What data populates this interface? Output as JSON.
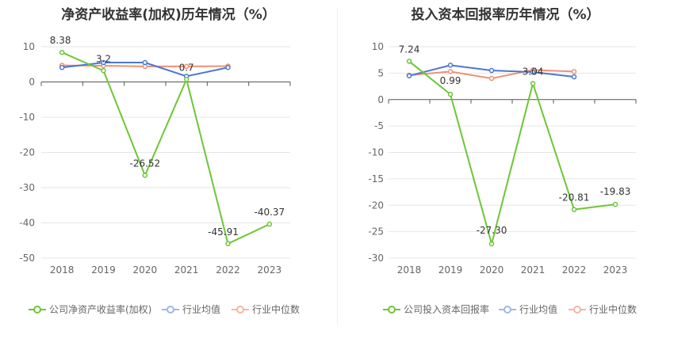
{
  "charts": [
    {
      "title": "净资产收益率(加权)历年情况（%）",
      "legend": [
        "公司净资产收益率(加权)",
        "行业均值",
        "行业中位数"
      ]
    },
    {
      "title": "投入资本回报率历年情况（%）",
      "legend": [
        "公司投入资本回报率",
        "行业均值",
        "行业中位数"
      ]
    }
  ],
  "colors": {
    "company": "#6cc638",
    "avg": "#4a78d0",
    "median": "#ef9074"
  },
  "chart_data": [
    {
      "type": "line",
      "title": "净资产收益率(加权)历年情况（%）",
      "categories": [
        "2018",
        "2019",
        "2020",
        "2021",
        "2022",
        "2023"
      ],
      "ylim": [
        -50,
        10
      ],
      "yticks": [
        10,
        0,
        -10,
        -20,
        -30,
        -40,
        -50
      ],
      "series": [
        {
          "name": "公司净资产收益率(加权)",
          "values": [
            8.38,
            3.2,
            -26.52,
            0.7,
            -45.91,
            -40.37
          ],
          "labels": [
            "8.38",
            "3.2",
            "-26.52",
            "0.7",
            "-45.91",
            "-40.37"
          ]
        },
        {
          "name": "行业均值",
          "values": [
            4.1,
            5.5,
            5.5,
            1.6,
            4.1,
            null
          ]
        },
        {
          "name": "行业中位数",
          "values": [
            4.7,
            4.6,
            4.4,
            4.4,
            4.5,
            null
          ]
        }
      ]
    },
    {
      "type": "line",
      "title": "投入资本回报率历年情况（%）",
      "categories": [
        "2018",
        "2019",
        "2020",
        "2021",
        "2022",
        "2023"
      ],
      "ylim": [
        -30,
        10
      ],
      "yticks": [
        10,
        5,
        0,
        -5,
        -10,
        -15,
        -20,
        -25,
        -30
      ],
      "series": [
        {
          "name": "公司投入资本回报率",
          "values": [
            7.24,
            0.99,
            -27.3,
            3.04,
            -20.81,
            -19.83
          ],
          "labels": [
            "7.24",
            "0.99",
            "-27.30",
            "3.04",
            "-20.81",
            "-19.83"
          ]
        },
        {
          "name": "行业均值",
          "values": [
            4.5,
            6.5,
            5.5,
            5.2,
            4.3,
            null
          ]
        },
        {
          "name": "行业中位数",
          "values": [
            4.6,
            5.3,
            4.0,
            5.6,
            5.3,
            null
          ]
        }
      ]
    }
  ]
}
